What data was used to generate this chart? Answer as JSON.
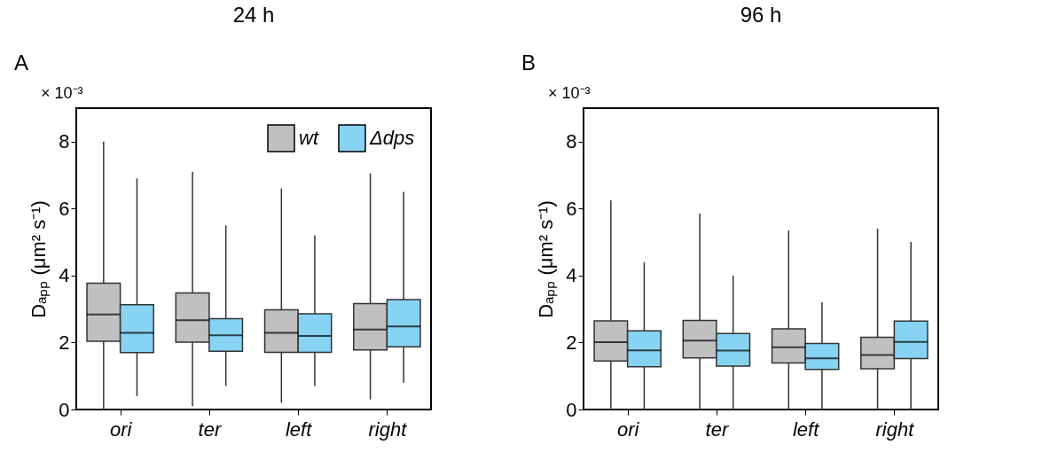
{
  "chart_data": [
    {
      "type": "box",
      "title": "24 h",
      "ylabel": "Dₐₚₚ (μm² s⁻¹)",
      "annotations": [
        "A",
        "× 10⁻³"
      ],
      "categories": [
        "ori",
        "ter",
        "left",
        "right"
      ],
      "ylim": [
        0,
        9
      ],
      "yticks": [
        0,
        2,
        4,
        6,
        8
      ],
      "grid": false,
      "legend": "top right",
      "series": [
        {
          "name": "wt",
          "color": "#c0c0c0",
          "boxes": [
            {
              "low": 0,
              "q1": 2.04,
              "median": 2.84,
              "q3": 3.77,
              "high": 8.0
            },
            {
              "low": 0.1,
              "q1": 2.01,
              "median": 2.67,
              "q3": 3.48,
              "high": 7.1
            },
            {
              "low": 0.2,
              "q1": 1.71,
              "median": 2.29,
              "q3": 2.98,
              "high": 6.6
            },
            {
              "low": 0.3,
              "q1": 1.78,
              "median": 2.39,
              "q3": 3.16,
              "high": 7.05
            }
          ]
        },
        {
          "name": "Δdps",
          "color": "#87d3f3",
          "boxes": [
            {
              "low": 0.4,
              "q1": 1.7,
              "median": 2.29,
              "q3": 3.13,
              "high": 6.9
            },
            {
              "low": 0.7,
              "q1": 1.74,
              "median": 2.22,
              "q3": 2.71,
              "high": 5.5
            },
            {
              "low": 0.7,
              "q1": 1.71,
              "median": 2.2,
              "q3": 2.86,
              "high": 5.2
            },
            {
              "low": 0.8,
              "q1": 1.87,
              "median": 2.48,
              "q3": 3.28,
              "high": 6.5
            }
          ]
        }
      ]
    },
    {
      "type": "box",
      "title": "96 h",
      "ylabel": "Dₐₚₚ (μm² s⁻¹)",
      "annotations": [
        "B",
        "× 10⁻³"
      ],
      "categories": [
        "ori",
        "ter",
        "left",
        "right"
      ],
      "ylim": [
        0,
        9
      ],
      "yticks": [
        0,
        2,
        4,
        6,
        8
      ],
      "grid": false,
      "series": [
        {
          "color": "#c0c0c0",
          "boxes": [
            {
              "low": 0,
              "q1": 1.45,
              "median": 2.01,
              "q3": 2.65,
              "high": 6.25
            },
            {
              "low": 0,
              "q1": 1.54,
              "median": 2.06,
              "q3": 2.66,
              "high": 5.85
            },
            {
              "low": 0,
              "q1": 1.39,
              "median": 1.86,
              "q3": 2.41,
              "high": 5.35
            },
            {
              "low": 0,
              "q1": 1.22,
              "median": 1.63,
              "q3": 2.16,
              "high": 5.4
            }
          ]
        },
        {
          "color": "#87d3f3",
          "boxes": [
            {
              "low": 0,
              "q1": 1.28,
              "median": 1.77,
              "q3": 2.35,
              "high": 4.4
            },
            {
              "low": 0,
              "q1": 1.3,
              "median": 1.76,
              "q3": 2.27,
              "high": 4.0
            },
            {
              "low": 0,
              "q1": 1.2,
              "median": 1.53,
              "q3": 1.97,
              "high": 3.2
            },
            {
              "low": 0,
              "q1": 1.52,
              "median": 2.02,
              "q3": 2.64,
              "high": 5.0
            }
          ]
        }
      ]
    }
  ]
}
